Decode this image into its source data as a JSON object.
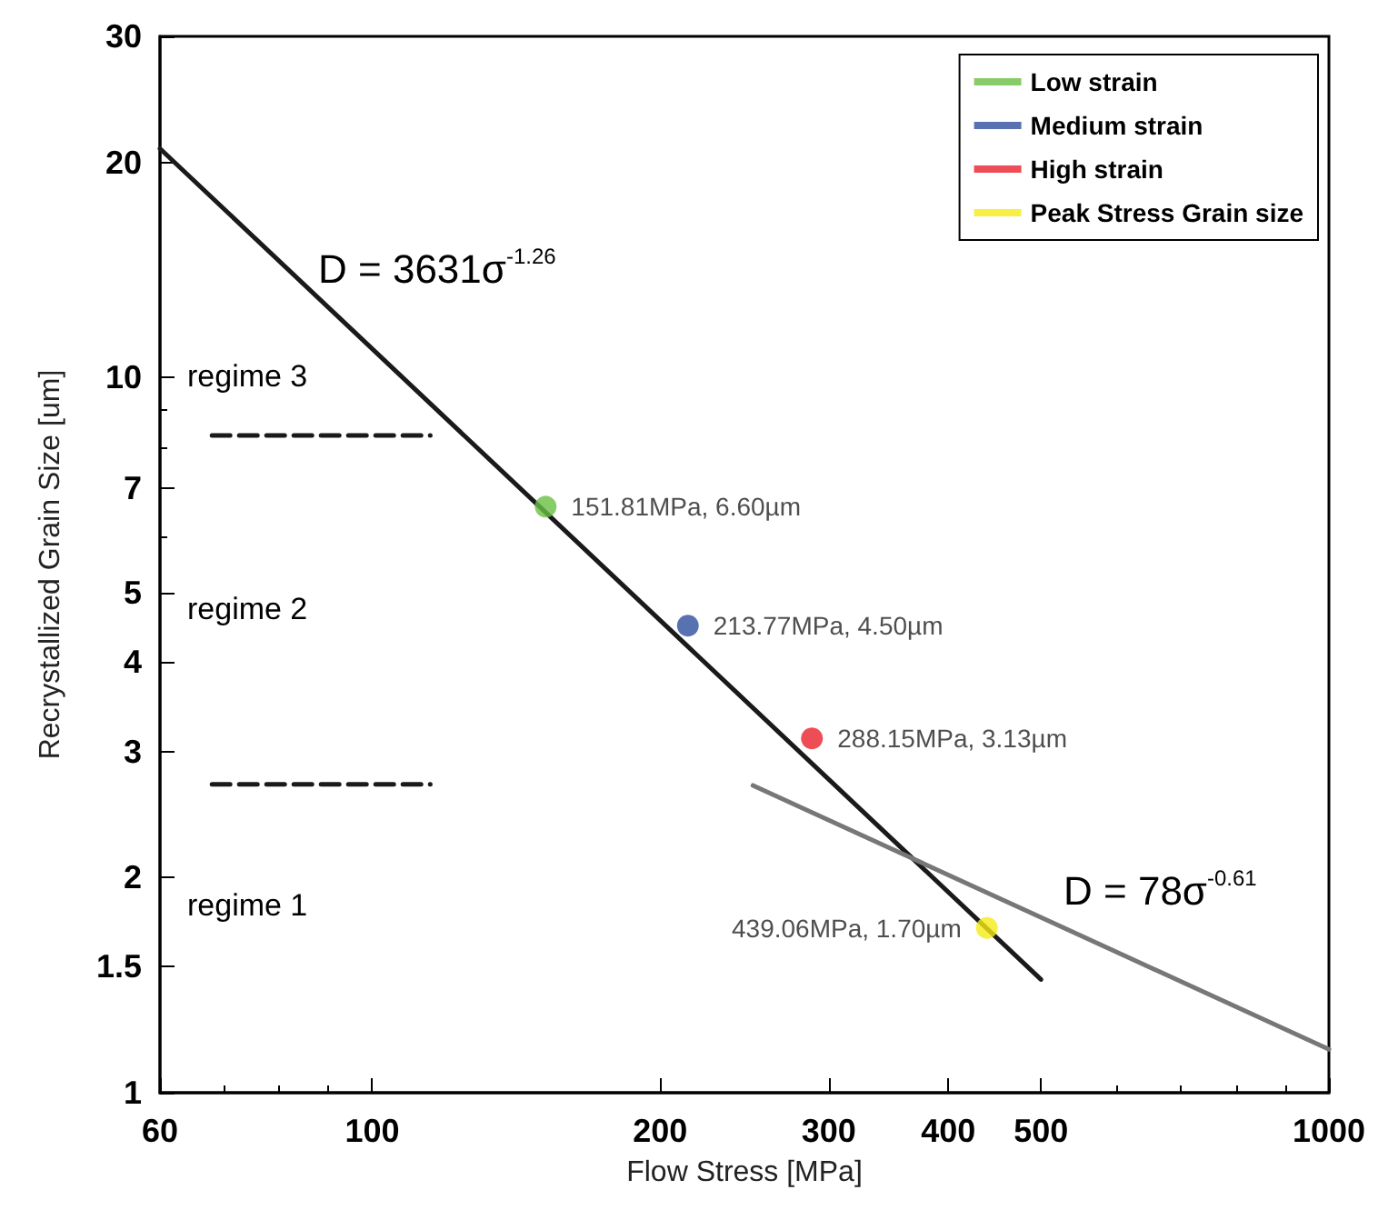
{
  "chart_data": {
    "type": "scatter",
    "xlabel": "Flow Stress [MPa]",
    "ylabel": "Recrystallized Grain Size [um]",
    "log": "xy",
    "xlim": [
      60,
      1000
    ],
    "ylim": [
      1,
      30
    ],
    "xticks": [
      60,
      100,
      200,
      300,
      400,
      500,
      1000
    ],
    "yticks": [
      1,
      1.5,
      2,
      3,
      4,
      5,
      7,
      10,
      20,
      30
    ],
    "grid": false,
    "legend": "top right",
    "series": [
      {
        "type": "line",
        "color": "#1a1a1a",
        "x": [
          60,
          500
        ],
        "values": [
          20.9,
          1.44
        ],
        "line_style": "solid",
        "marker": "none"
      },
      {
        "type": "line",
        "color": "#777777",
        "x": [
          250,
          1000
        ],
        "values": [
          2.69,
          1.15
        ],
        "line_style": "solid",
        "marker": "none"
      },
      {
        "type": "line",
        "color": "#1a1a1a",
        "x": [
          68,
          115
        ],
        "values": [
          8.3,
          8.3
        ],
        "line_style": "dashed",
        "marker": "none"
      },
      {
        "type": "line",
        "color": "#1a1a1a",
        "x": [
          68,
          115
        ],
        "values": [
          2.7,
          2.7
        ],
        "line_style": "dashed",
        "marker": "none"
      },
      {
        "name": "Low strain",
        "color": "#6abf45",
        "x": [
          151.81
        ],
        "values": [
          6.6
        ],
        "marker": "circle",
        "value_labels": [
          "151.81MPa, 6.60µm"
        ]
      },
      {
        "name": "Medium strain",
        "color": "#2e4f9e",
        "x": [
          213.77
        ],
        "values": [
          4.5
        ],
        "marker": "circle",
        "value_labels": [
          "213.77MPa, 4.50µm"
        ]
      },
      {
        "name": "High strain",
        "color": "#e8202a",
        "x": [
          288.15
        ],
        "values": [
          3.13
        ],
        "marker": "circle",
        "value_labels": [
          "288.15MPa, 3.13µm"
        ]
      },
      {
        "name": "Peak Stress Grain size",
        "color": "#f5eb14",
        "x": [
          439.06
        ],
        "values": [
          1.7
        ],
        "marker": "circle",
        "value_labels": [
          "439.06MPa, 1.70µm"
        ]
      }
    ],
    "annotations": [
      "D = 3631σ$^{-1.26}$",
      "D = 78σ$^{-0.61}$",
      "regime 3",
      "regime 2",
      "regime 1"
    ]
  }
}
